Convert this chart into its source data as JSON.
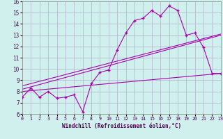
{
  "xlabel": "Windchill (Refroidissement éolien,°C)",
  "xlim": [
    0,
    23
  ],
  "ylim": [
    6,
    16
  ],
  "xticks": [
    0,
    1,
    2,
    3,
    4,
    5,
    6,
    7,
    8,
    9,
    10,
    11,
    12,
    13,
    14,
    15,
    16,
    17,
    18,
    19,
    20,
    21,
    22,
    23
  ],
  "yticks": [
    6,
    7,
    8,
    9,
    10,
    11,
    12,
    13,
    14,
    15,
    16
  ],
  "bg_color": "#cff0ec",
  "grid_color": "#b0b0cc",
  "line_color": "#aa00aa",
  "jagged_x": [
    0,
    1,
    2,
    3,
    4,
    5,
    6,
    7,
    8,
    9,
    10,
    11,
    12,
    13,
    14,
    15,
    16,
    17,
    18,
    19,
    20,
    21,
    22,
    23
  ],
  "jagged_y": [
    7.5,
    8.3,
    7.5,
    8.0,
    7.4,
    7.5,
    7.7,
    6.2,
    8.7,
    9.7,
    9.9,
    11.7,
    13.2,
    14.3,
    14.5,
    15.2,
    14.7,
    15.6,
    15.2,
    13.0,
    13.2,
    11.9,
    9.6,
    9.6
  ],
  "trend1_x": [
    0,
    23
  ],
  "trend1_y": [
    8.5,
    13.1
  ],
  "trend2_x": [
    0,
    23
  ],
  "trend2_y": [
    8.2,
    13.0
  ],
  "trend3_x": [
    0,
    23
  ],
  "trend3_y": [
    8.0,
    9.6
  ]
}
